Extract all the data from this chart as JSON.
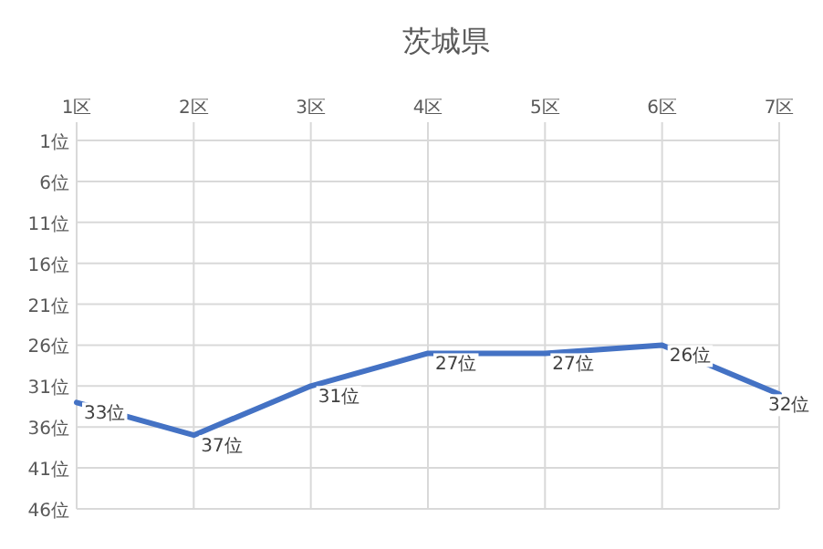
{
  "chart_data": {
    "type": "line",
    "title": "茨城県",
    "categories": [
      "1区",
      "2区",
      "3区",
      "4区",
      "5区",
      "6区",
      "7区"
    ],
    "series": [
      {
        "color": "#4472c4",
        "values": [
          33,
          37,
          31,
          27,
          27,
          26,
          32
        ],
        "value_labels": [
          "33位",
          "37位",
          "31位",
          "27位",
          "27位",
          "26位",
          "32位"
        ]
      }
    ],
    "ylim": [
      46,
      1
    ],
    "yticks": [
      {
        "value": 1,
        "label": "1位"
      },
      {
        "value": 6,
        "label": "6位"
      },
      {
        "value": 11,
        "label": "11位"
      },
      {
        "value": 16,
        "label": "16位"
      },
      {
        "value": 21,
        "label": "21位"
      },
      {
        "value": 26,
        "label": "26位"
      },
      {
        "value": 31,
        "label": "31位"
      },
      {
        "value": 36,
        "label": "36位"
      },
      {
        "value": 41,
        "label": "41位"
      },
      {
        "value": 46,
        "label": "46位"
      }
    ],
    "grid": true
  }
}
